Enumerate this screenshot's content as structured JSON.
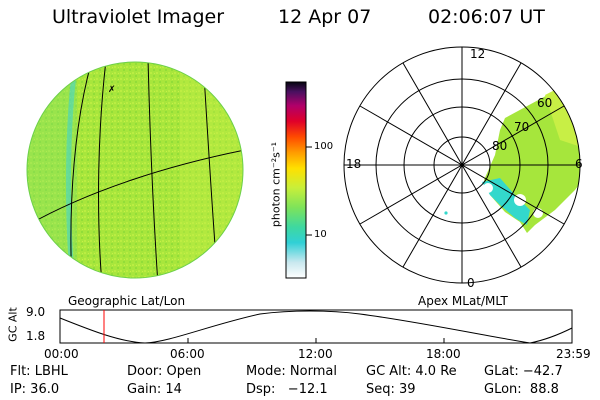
{
  "header": {
    "instrument": "Ultraviolet Imager",
    "date": "12 Apr 07",
    "time": "02:06:07 UT"
  },
  "colorbar": {
    "unit_label": "photon cm⁻²s⁻¹",
    "ticks": [
      "100",
      "10"
    ]
  },
  "panels": {
    "left_caption": "Geographic Lat/Lon",
    "right_caption": "Apex MLat/MLT"
  },
  "polar_plot": {
    "mlt_labels": {
      "top": "12",
      "left": "18",
      "right": "6",
      "bottom": "0"
    },
    "lat_labels": [
      "60",
      "70",
      "80"
    ]
  },
  "altitude_plot": {
    "ylabel": "GC Alt",
    "yticks": [
      "9.0",
      "1.8"
    ],
    "xticks": [
      "00:00",
      "06:00",
      "12:00",
      "18:00",
      "23:59"
    ]
  },
  "status": {
    "filter": "Flt: LBHL",
    "ip": "IP: 36.0",
    "door": "Door: Open",
    "gain": "Gain: 14",
    "mode": "Mode: Normal",
    "dsp": "Dsp:   −12.1",
    "gc_alt": "GC Alt: 4.0 Re",
    "seq": "Seq: 39",
    "glat": "GLat: −42.7",
    "glon": "GLon:  88.8"
  },
  "colors": {
    "disk_fill": "#9fe33a",
    "disk_light": "#c6ef45",
    "aurora_cyan": "#33d8cc",
    "marker_red": "#ff0000"
  }
}
